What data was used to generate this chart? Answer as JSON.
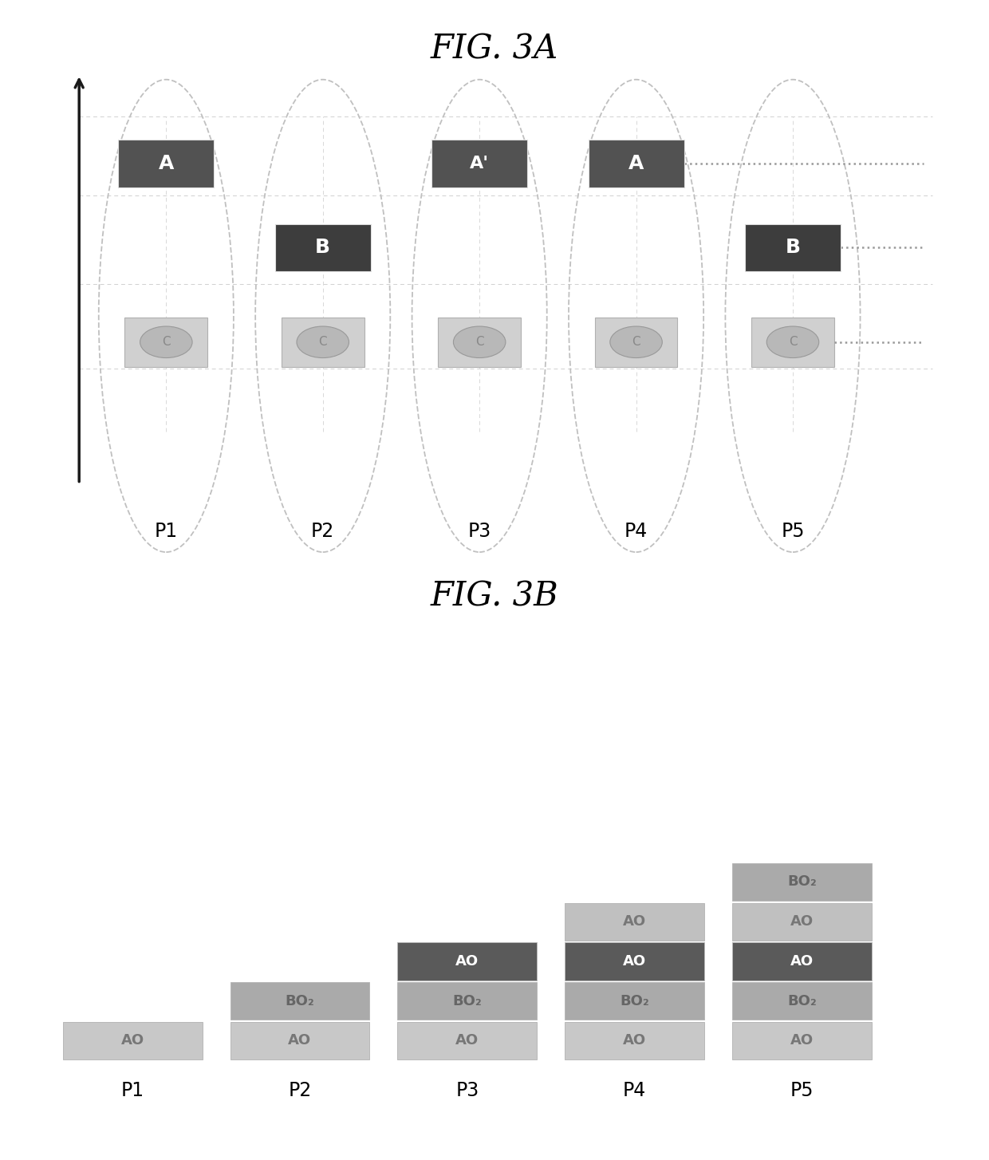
{
  "fig_title_A": "FIG. 3A",
  "fig_title_B": "FIG. 3B",
  "periods": [
    "P1",
    "P2",
    "P3",
    "P4",
    "P5"
  ],
  "color_A_dark": "#525252",
  "color_B_dark": "#3d3d3d",
  "color_C_outer": "#d0d0d0",
  "color_C_inner": "#b8b8b8",
  "color_ellipse": "#c0c0c0",
  "color_grid_h": "#d0d0d0",
  "color_grid_v": "#d8d8d8",
  "layer_AO_light": "#c8c8c8",
  "layer_BO2_med": "#aaaaaa",
  "layer_AO_dark": "#5a5a5a",
  "layer_AO_light2": "#c0c0c0",
  "layer_BO2_top": "#aaaaaa",
  "background": "#ffffff",
  "axis_color": "#1a1a1a"
}
